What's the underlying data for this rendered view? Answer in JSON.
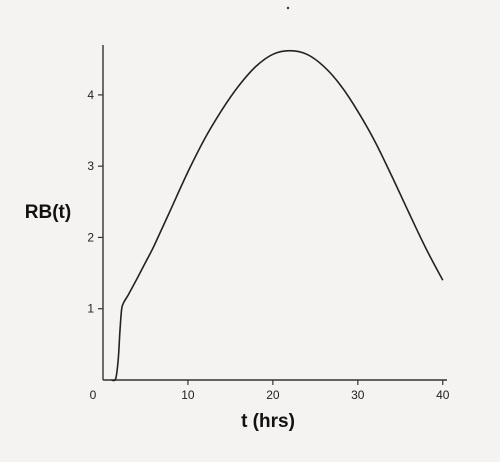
{
  "chart_data": {
    "type": "line",
    "title": "",
    "xlabel": "t (hrs)",
    "ylabel": "RB(t)",
    "xlim": [
      0,
      40.5
    ],
    "ylim": [
      0,
      4.7
    ],
    "x_ticks": [
      0,
      10,
      20,
      30,
      40
    ],
    "y_ticks": [
      1,
      2,
      3,
      4
    ],
    "x_tick_labels": [
      "0",
      "10",
      "20",
      "30",
      "40"
    ],
    "y_tick_labels": [
      "1",
      "2",
      "3",
      "4"
    ],
    "grid": false,
    "legend": "none",
    "series": [
      {
        "color": "#222222",
        "x": [
          1.0,
          1.5,
          1.8,
          2.0,
          2.2,
          2.5,
          3.0,
          4.0,
          5.0,
          6.0,
          8.0,
          10.0,
          12.0,
          14.0,
          16.0,
          18.0,
          20.0,
          22.0,
          24.0,
          26.0,
          28.0,
          30.0,
          32.0,
          34.0,
          36.0,
          38.0,
          40.0
        ],
        "y": [
          0.0,
          0.02,
          0.3,
          0.7,
          1.0,
          1.1,
          1.2,
          1.42,
          1.65,
          1.88,
          2.4,
          2.92,
          3.39,
          3.79,
          4.13,
          4.4,
          4.57,
          4.62,
          4.57,
          4.4,
          4.13,
          3.77,
          3.35,
          2.86,
          2.35,
          1.85,
          1.4
        ]
      }
    ]
  }
}
